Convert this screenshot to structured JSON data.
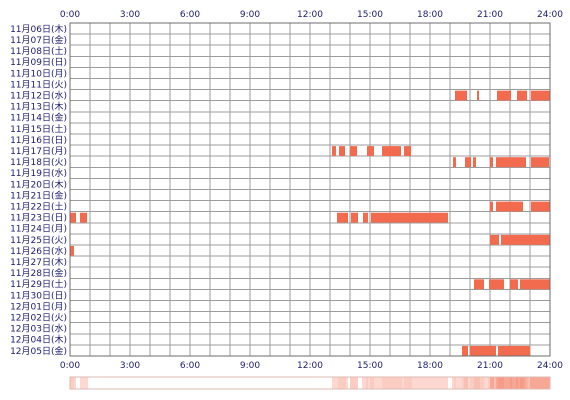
{
  "chart_data": {
    "type": "heatmap",
    "xlim": [
      0,
      24
    ],
    "x_ticks": [
      "0:00",
      "3:00",
      "6:00",
      "9:00",
      "12:00",
      "15:00",
      "18:00",
      "21:00",
      "24:00"
    ],
    "grid": true,
    "segment_color": "#f26b4f",
    "rows": [
      {
        "label": "11月06日(木)",
        "segments": []
      },
      {
        "label": "11月07日(金)",
        "segments": []
      },
      {
        "label": "11月08日(土)",
        "segments": []
      },
      {
        "label": "11月09日(日)",
        "segments": []
      },
      {
        "label": "11月10日(月)",
        "segments": []
      },
      {
        "label": "11月11日(火)",
        "segments": []
      },
      {
        "label": "11月12日(水)",
        "segments": [
          [
            19.25,
            19.85
          ],
          [
            20.35,
            20.45
          ],
          [
            21.35,
            22.05
          ],
          [
            22.35,
            22.85
          ],
          [
            23.05,
            24.0
          ]
        ]
      },
      {
        "label": "11月13日(木)",
        "segments": []
      },
      {
        "label": "11月14日(金)",
        "segments": []
      },
      {
        "label": "11月15日(土)",
        "segments": []
      },
      {
        "label": "11月16日(日)",
        "segments": []
      },
      {
        "label": "11月17日(月)",
        "segments": [
          [
            13.1,
            13.3
          ],
          [
            13.45,
            13.75
          ],
          [
            14.0,
            14.35
          ],
          [
            14.85,
            15.2
          ],
          [
            15.6,
            16.55
          ],
          [
            16.7,
            17.05
          ]
        ]
      },
      {
        "label": "11月18日(火)",
        "segments": [
          [
            19.15,
            19.3
          ],
          [
            19.75,
            20.05
          ],
          [
            20.15,
            20.3
          ],
          [
            21.0,
            21.15
          ],
          [
            21.3,
            22.8
          ],
          [
            23.05,
            23.95
          ]
        ]
      },
      {
        "label": "11月19日(水)",
        "segments": []
      },
      {
        "label": "11月20日(木)",
        "segments": []
      },
      {
        "label": "11月21日(金)",
        "segments": []
      },
      {
        "label": "11月22日(土)",
        "segments": [
          [
            21.0,
            21.15
          ],
          [
            21.3,
            22.65
          ],
          [
            23.05,
            24.0
          ]
        ]
      },
      {
        "label": "11月23日(日)",
        "segments": [
          [
            0.0,
            0.3
          ],
          [
            0.5,
            0.85
          ],
          [
            13.35,
            13.9
          ],
          [
            14.05,
            14.4
          ],
          [
            14.65,
            14.9
          ],
          [
            15.05,
            18.9
          ]
        ]
      },
      {
        "label": "11月24日(月)",
        "segments": []
      },
      {
        "label": "11月25日(火)",
        "segments": [
          [
            21.0,
            21.45
          ],
          [
            21.55,
            24.0
          ]
        ]
      },
      {
        "label": "11月26日(水)",
        "segments": [
          [
            0.0,
            0.2
          ]
        ]
      },
      {
        "label": "11月27日(木)",
        "segments": []
      },
      {
        "label": "11月28日(金)",
        "segments": []
      },
      {
        "label": "11月29日(土)",
        "segments": [
          [
            20.2,
            20.7
          ],
          [
            20.95,
            21.7
          ],
          [
            22.0,
            22.4
          ],
          [
            22.5,
            24.0
          ]
        ]
      },
      {
        "label": "11月30日(日)",
        "segments": []
      },
      {
        "label": "12月01日(月)",
        "segments": []
      },
      {
        "label": "12月02日(火)",
        "segments": []
      },
      {
        "label": "12月03日(水)",
        "segments": []
      },
      {
        "label": "12月04日(木)",
        "segments": []
      },
      {
        "label": "12月05日(金)",
        "segments": [
          [
            19.6,
            19.9
          ],
          [
            20.0,
            21.3
          ],
          [
            21.4,
            23.0
          ]
        ]
      }
    ]
  },
  "style_colors": {
    "text": "#1b1b6e",
    "grid": "#9c9c9c",
    "frame": "#6e6e6e",
    "summary_border": "#dcbab2"
  }
}
